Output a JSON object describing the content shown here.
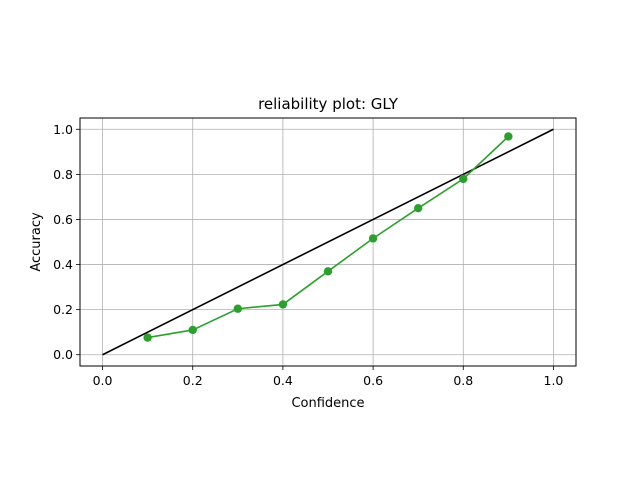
{
  "chart_data": {
    "type": "line",
    "title": "reliability plot: GLY",
    "xlabel": "Confidence",
    "ylabel": "Accuracy",
    "xlim": [
      -0.05,
      1.05
    ],
    "ylim": [
      -0.05,
      1.05
    ],
    "xticks": [
      "0.0",
      "0.2",
      "0.4",
      "0.6",
      "0.8",
      "1.0"
    ],
    "yticks": [
      "0.0",
      "0.2",
      "0.4",
      "0.6",
      "0.8",
      "1.0"
    ],
    "grid": true,
    "reference_line": {
      "x": [
        0.0,
        1.0
      ],
      "y": [
        0.0,
        1.0
      ],
      "color": "#000000"
    },
    "series": [
      {
        "color": "#2ca02c",
        "marker": "circle",
        "x": [
          0.1,
          0.2,
          0.3,
          0.4,
          0.5,
          0.6,
          0.7,
          0.8,
          0.9
        ],
        "y": [
          0.076,
          0.11,
          0.204,
          0.223,
          0.37,
          0.516,
          0.65,
          0.78,
          0.968
        ]
      }
    ]
  }
}
